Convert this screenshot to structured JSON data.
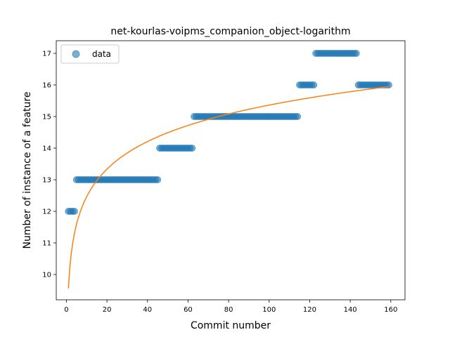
{
  "chart_data": {
    "type": "scatter",
    "title": "net-kourlas-voipms_companion_object-logarithm",
    "xlabel": "Commit number",
    "ylabel": "Number of instance of a feature",
    "xlim": [
      -5,
      167
    ],
    "ylim": [
      9.2,
      17.4
    ],
    "xticks": [
      0,
      20,
      40,
      60,
      80,
      100,
      120,
      140,
      160
    ],
    "yticks": [
      10,
      11,
      12,
      13,
      14,
      15,
      16,
      17
    ],
    "grid": false,
    "legend": {
      "position": "top-left",
      "entries": [
        "data"
      ]
    },
    "colors": {
      "data": "#1f77b4",
      "fit": "#ff7f0e"
    },
    "series": [
      {
        "name": "data",
        "kind": "scatter",
        "segments": [
          {
            "x_from": 1,
            "x_to": 4,
            "y": 12
          },
          {
            "x_from": 5,
            "x_to": 45,
            "y": 13
          },
          {
            "x_from": 46,
            "x_to": 62,
            "y": 14
          },
          {
            "x_from": 63,
            "x_to": 114,
            "y": 15
          },
          {
            "x_from": 115,
            "x_to": 122,
            "y": 16
          },
          {
            "x_from": 123,
            "x_to": 143,
            "y": 17
          },
          {
            "x_from": 144,
            "x_to": 159,
            "y": 16
          }
        ]
      },
      {
        "kind": "line",
        "model": "logarithmic",
        "a": 9.56,
        "b": 1.26,
        "x_range": [
          1,
          159
        ]
      }
    ]
  }
}
